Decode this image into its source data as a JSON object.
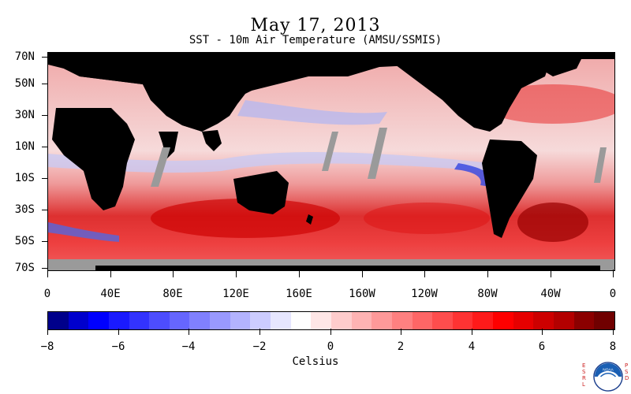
{
  "header": {
    "date": "May 17, 2013",
    "subtitle": "SST - 10m Air Temperature (AMSU/SSMIS)"
  },
  "map": {
    "lat_labels": [
      "70N",
      "50N",
      "30N",
      "10N",
      "10S",
      "30S",
      "50S",
      "70S"
    ],
    "lon_labels": [
      "0",
      "40E",
      "80E",
      "120E",
      "160E",
      "160W",
      "120W",
      "80W",
      "40W",
      "0"
    ],
    "colors": {
      "land": "#000000",
      "missing": "#999999",
      "warm": "#dd2222",
      "cold": "#2233dd"
    }
  },
  "colorbar": {
    "tick_labels": [
      "−8",
      "−6",
      "−4",
      "−2",
      "0",
      "2",
      "4",
      "6",
      "8"
    ],
    "unit": "Celsius",
    "colors": [
      "#00008b",
      "#0000cd",
      "#0000ff",
      "#1a1aff",
      "#3333ff",
      "#4d4dff",
      "#6666ff",
      "#8080ff",
      "#9999ff",
      "#b3b3ff",
      "#ccccff",
      "#e6e6ff",
      "#ffffff",
      "#ffe6e6",
      "#ffcccc",
      "#ffb3b3",
      "#ff9999",
      "#ff8080",
      "#ff6666",
      "#ff4d4d",
      "#ff3333",
      "#ff1a1a",
      "#ff0000",
      "#e60000",
      "#cd0000",
      "#b30000",
      "#8b0000",
      "#700000"
    ]
  },
  "footer": {
    "left_vertical": "ESRL",
    "right_vertical": "PSD",
    "logo_text": "NOAA"
  }
}
